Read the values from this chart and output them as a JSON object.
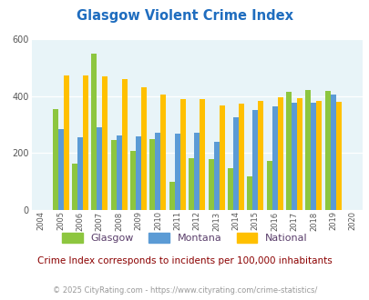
{
  "title": "Glasgow Violent Crime Index",
  "years": [
    2005,
    2006,
    2007,
    2008,
    2009,
    2010,
    2011,
    2012,
    2013,
    2014,
    2015,
    2016,
    2017,
    2018,
    2019
  ],
  "glasgow": [
    355,
    163,
    548,
    245,
    208,
    248,
    98,
    183,
    178,
    147,
    118,
    172,
    415,
    420,
    418
  ],
  "montana": [
    285,
    255,
    290,
    260,
    258,
    270,
    268,
    272,
    238,
    325,
    350,
    365,
    375,
    375,
    405
  ],
  "national": [
    472,
    472,
    468,
    458,
    430,
    404,
    388,
    388,
    368,
    372,
    383,
    397,
    393,
    382,
    379
  ],
  "glasgow_color": "#8dc63f",
  "montana_color": "#5b9bd5",
  "national_color": "#ffc000",
  "bg_color": "#e8f4f8",
  "title_color": "#1f6dbf",
  "legend_text_color": "#5a3e6b",
  "note_color": "#8b0000",
  "copyright_color": "#999999",
  "note": "Crime Index corresponds to incidents per 100,000 inhabitants",
  "copyright": "© 2025 CityRating.com - https://www.cityrating.com/crime-statistics/",
  "ylim": [
    0,
    600
  ],
  "yticks": [
    0,
    200,
    400,
    600
  ],
  "xlabel_years": [
    2004,
    2005,
    2006,
    2007,
    2008,
    2009,
    2010,
    2011,
    2012,
    2013,
    2014,
    2015,
    2016,
    2017,
    2018,
    2019,
    2020
  ]
}
